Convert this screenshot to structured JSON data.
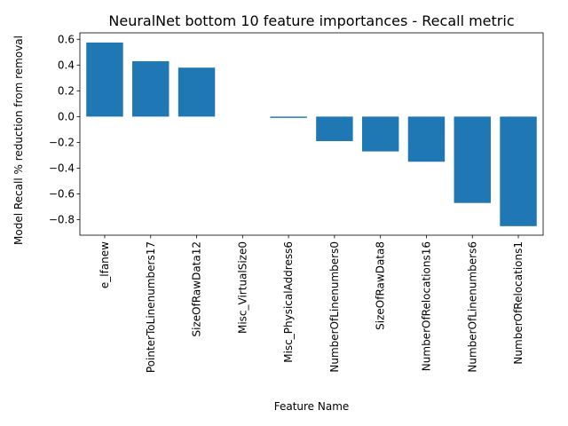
{
  "chart_data": {
    "type": "bar",
    "title": "NeuralNet bottom 10 feature importances - Recall metric",
    "xlabel": "Feature Name",
    "ylabel": "Model Recall % reduction from removal",
    "categories": [
      "e_lfanew",
      "PointerToLinenumbers17",
      "SizeOfRawData12",
      "Misc_VirtualSize0",
      "Misc_PhysicalAddress6",
      "NumberOfLinenumbers0",
      "SizeOfRawData8",
      "NumberOfRelocations16",
      "NumberOfLinenumbers6",
      "NumberOfRelocations1"
    ],
    "values": [
      0.575,
      0.43,
      0.38,
      0.0,
      -0.01,
      -0.19,
      -0.27,
      -0.35,
      -0.67,
      -0.85
    ],
    "ylim": [
      -0.92,
      0.65
    ],
    "yticks": [
      0.6,
      0.4,
      0.2,
      0.0,
      -0.2,
      -0.4,
      -0.6,
      -0.8
    ],
    "ytick_labels": [
      "0.6",
      "0.4",
      "0.2",
      "0.0",
      "−0.2",
      "−0.4",
      "−0.6",
      "−0.8"
    ],
    "bar_color": "#1f77b4",
    "grid": false,
    "legend": false
  }
}
